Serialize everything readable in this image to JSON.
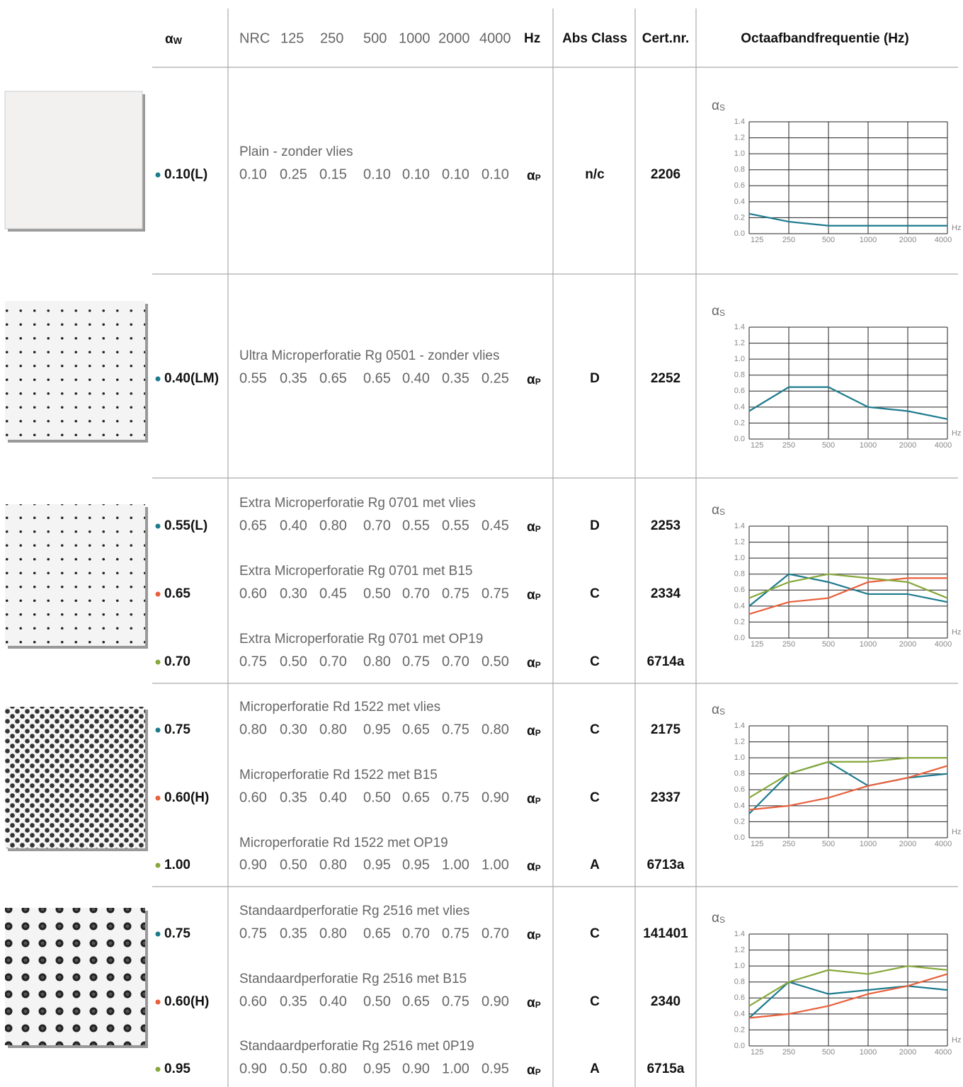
{
  "header": {
    "alpha_symbol": "α",
    "alpha_w_sub": "W",
    "columns": [
      "NRC",
      "125",
      "250",
      "500",
      "1000",
      "2000",
      "4000"
    ],
    "hz": "Hz",
    "abs_class": "Abs Class",
    "cert": "Cert.nr.",
    "chart_title": "Octaafbandfrequentie (Hz)"
  },
  "alpha_p_sub": "P",
  "chart": {
    "type": "line",
    "y_label_sub": "S",
    "ylim": [
      0,
      1.4
    ],
    "yticks": [
      {
        "value": 0,
        "label": "0.0"
      },
      0.2,
      0.4,
      0.6,
      0.8,
      {
        "value": 1,
        "label": "1.0"
      },
      1.2,
      1.4
    ],
    "categories": [
      "125",
      "250",
      "500",
      "1000",
      "2000",
      "4000"
    ],
    "x_unit": "Hz"
  },
  "groups": [
    {
      "entries": [
        {
          "aw": "0.10(L)",
          "color": "#1d7b8e",
          "name": "Plain - zonder vlies",
          "values": [
            0.1,
            0.25,
            0.15,
            0.1,
            0.1,
            0.1,
            0.1
          ],
          "value_labels": [
            "0.10",
            "0.25",
            "0.15",
            "0.10",
            "0.10",
            "0.10",
            "0.10"
          ],
          "abs_class": "n/c",
          "cert": "2206"
        }
      ]
    },
    {
      "entries": [
        {
          "aw": "0.40(LM)",
          "color": "#1d7b8e",
          "name": "Ultra Microperforatie Rg 0501 - zonder vlies",
          "values": [
            0.55,
            0.35,
            0.65,
            0.65,
            0.4,
            0.35,
            0.25
          ],
          "value_labels": [
            "0.55",
            "0.35",
            "0.65",
            "0.65",
            "0.40",
            "0.35",
            "0.25"
          ],
          "abs_class": "D",
          "cert": "2252"
        }
      ]
    },
    {
      "entries": [
        {
          "aw": "0.55(L)",
          "color": "#1d7b8e",
          "name": "Extra Microperforatie Rg 0701 met vlies",
          "values": [
            0.65,
            0.4,
            0.8,
            0.7,
            0.55,
            0.55,
            0.45
          ],
          "value_labels": [
            "0.65",
            "0.40",
            "0.80",
            "0.70",
            "0.55",
            "0.55",
            "0.45"
          ],
          "abs_class": "D",
          "cert": "2253"
        },
        {
          "aw": "0.65",
          "color": "#e8603c",
          "name": "Extra Microperforatie Rg 0701 met B15",
          "values": [
            0.6,
            0.3,
            0.45,
            0.5,
            0.7,
            0.75,
            0.75
          ],
          "value_labels": [
            "0.60",
            "0.30",
            "0.45",
            "0.50",
            "0.70",
            "0.75",
            "0.75"
          ],
          "abs_class": "C",
          "cert": "2334"
        },
        {
          "aw": "0.70",
          "color": "#86a83a",
          "name": "Extra Microperforatie Rg 0701 met OP19",
          "values": [
            0.75,
            0.5,
            0.7,
            0.8,
            0.75,
            0.7,
            0.5
          ],
          "value_labels": [
            "0.75",
            "0.50",
            "0.70",
            "0.80",
            "0.75",
            "0.70",
            "0.50"
          ],
          "abs_class": "C",
          "cert": "6714a"
        }
      ]
    },
    {
      "entries": [
        {
          "aw": "0.75",
          "color": "#1d7b8e",
          "name": "Microperforatie Rd 1522 met vlies",
          "values": [
            0.8,
            0.3,
            0.8,
            0.95,
            0.65,
            0.75,
            0.8
          ],
          "value_labels": [
            "0.80",
            "0.30",
            "0.80",
            "0.95",
            "0.65",
            "0.75",
            "0.80"
          ],
          "abs_class": "C",
          "cert": "2175"
        },
        {
          "aw": "0.60(H)",
          "color": "#e8603c",
          "name": "Microperforatie Rd 1522 met B15",
          "values": [
            0.6,
            0.35,
            0.4,
            0.5,
            0.65,
            0.75,
            0.9
          ],
          "value_labels": [
            "0.60",
            "0.35",
            "0.40",
            "0.50",
            "0.65",
            "0.75",
            "0.90"
          ],
          "abs_class": "C",
          "cert": "2337"
        },
        {
          "aw": "1.00",
          "color": "#86a83a",
          "name": "Microperforatie Rd 1522 met OP19",
          "values": [
            0.9,
            0.5,
            0.8,
            0.95,
            0.95,
            1,
            1
          ],
          "value_labels": [
            "0.90",
            "0.50",
            "0.80",
            "0.95",
            "0.95",
            "1.00",
            "1.00"
          ],
          "abs_class": "A",
          "cert": "6713a"
        }
      ]
    },
    {
      "entries": [
        {
          "aw": "0.75",
          "color": "#1d7b8e",
          "name": "Standaardperforatie Rg 2516 met vlies",
          "values": [
            0.75,
            0.35,
            0.8,
            0.65,
            0.7,
            0.75,
            0.7
          ],
          "value_labels": [
            "0.75",
            "0.35",
            "0.80",
            "0.65",
            "0.70",
            "0.75",
            "0.70"
          ],
          "abs_class": "C",
          "cert": "141401"
        },
        {
          "aw": "0.60(H)",
          "color": "#e8603c",
          "name": "Standaardperforatie Rg 2516 met B15",
          "values": [
            0.6,
            0.35,
            0.4,
            0.5,
            0.65,
            0.75,
            0.9
          ],
          "value_labels": [
            "0.60",
            "0.35",
            "0.40",
            "0.50",
            "0.65",
            "0.75",
            "0.90"
          ],
          "abs_class": "C",
          "cert": "2340"
        },
        {
          "aw": "0.95",
          "color": "#86a83a",
          "name": "Standaardperforatie Rg 2516 met 0P19",
          "values": [
            0.9,
            0.5,
            0.8,
            0.95,
            0.9,
            1,
            0.95
          ],
          "value_labels": [
            "0.90",
            "0.50",
            "0.80",
            "0.95",
            "0.90",
            "1.00",
            "0.95"
          ],
          "abs_class": "A",
          "cert": "6715a"
        }
      ]
    }
  ]
}
